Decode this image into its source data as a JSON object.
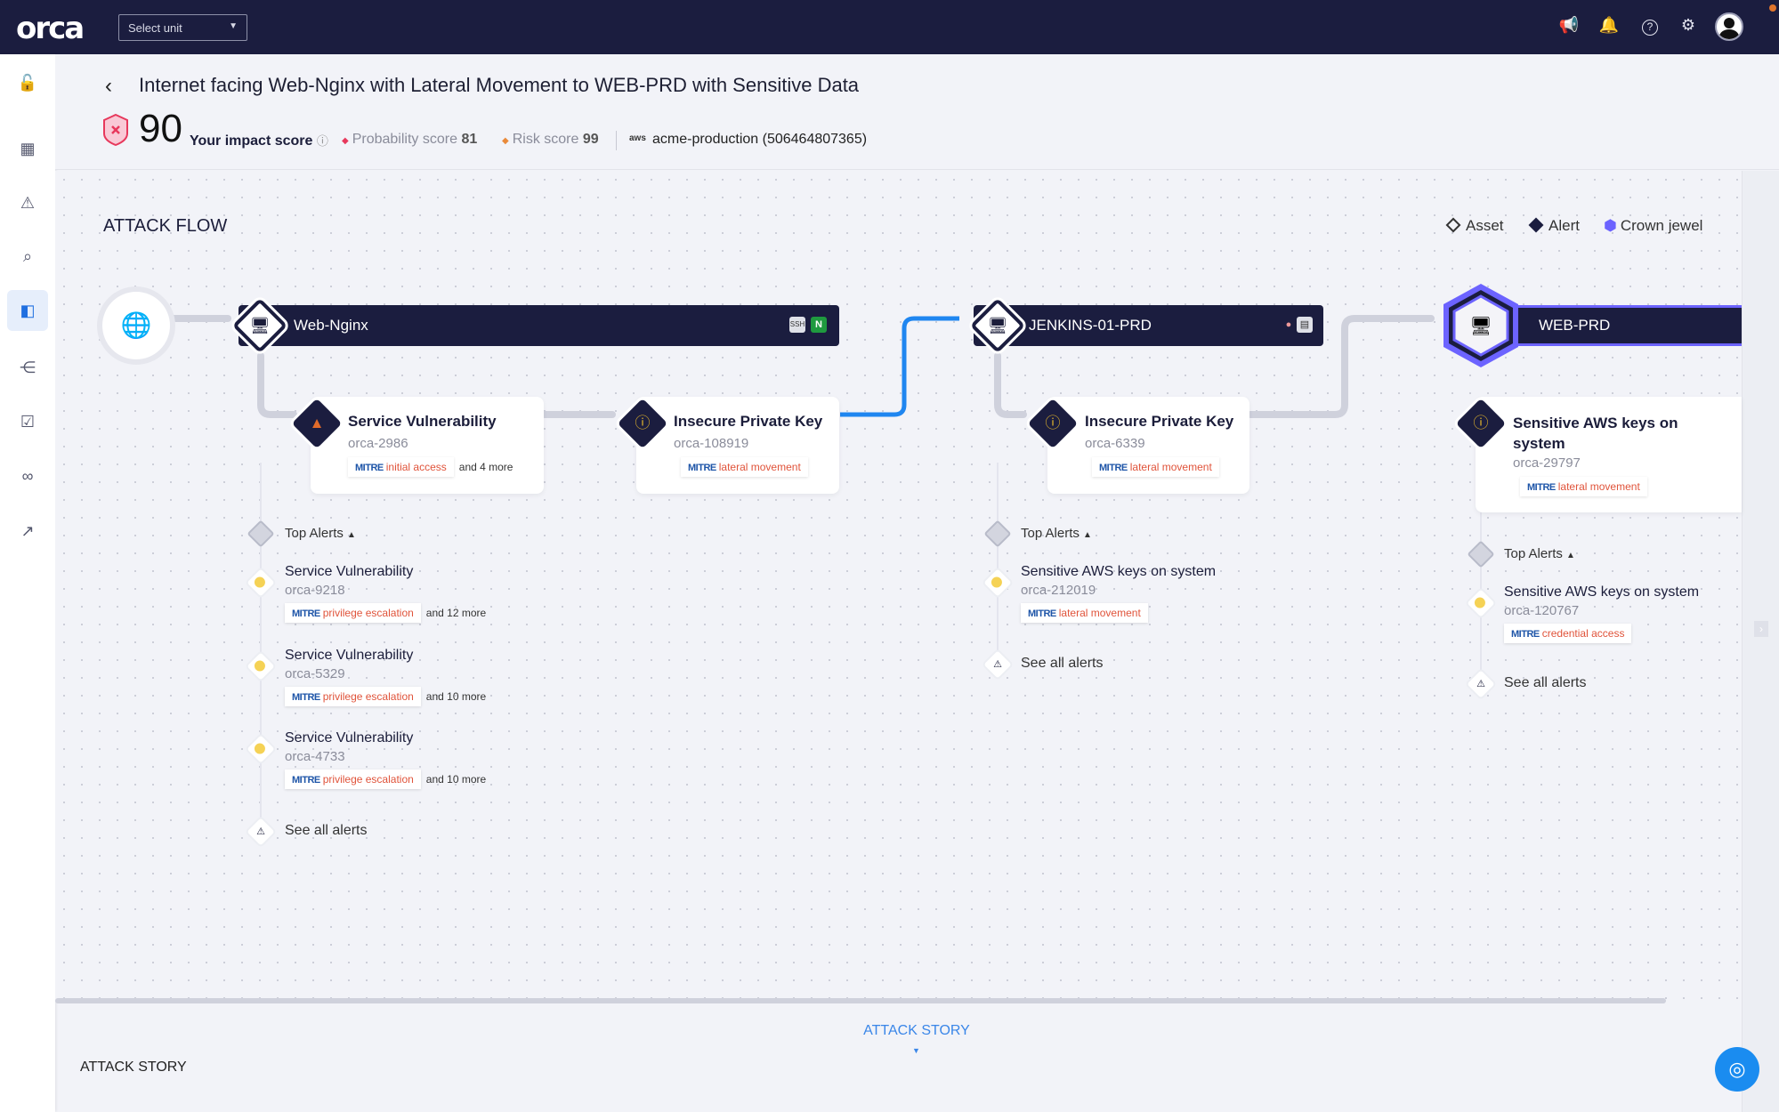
{
  "topbar": {
    "logo": "orca",
    "unit_select": "Select unit",
    "icons": [
      "megaphone-icon",
      "bell-icon",
      "help-icon",
      "gear-icon",
      "avatar"
    ]
  },
  "sidebar": {
    "items": [
      "lock-icon",
      "dashboard-icon",
      "alert-icon",
      "search-icon",
      "attack-path-icon",
      "graph-icon",
      "compliance-icon",
      "integrations-icon",
      "flow-icon"
    ],
    "active": "attack-path-icon"
  },
  "header": {
    "title": "Internet facing Web-Nginx with Lateral Movement to WEB-PRD with Sensitive Data",
    "impact_score": "90",
    "impact_label": "Your impact score",
    "probability_label": "Probability score",
    "probability": "81",
    "risk_label": "Risk score",
    "risk": "99",
    "cloud": "aws",
    "account": "acme-production (506464807365)"
  },
  "flow": {
    "title": "ATTACK FLOW",
    "legend": {
      "asset": "Asset",
      "alert": "Alert",
      "crown": "Crown jewel"
    },
    "assets": [
      {
        "name": "Web-Nginx",
        "badges": [
          "SSH",
          "N"
        ],
        "path_alerts": [
          {
            "title": "Service Vulnerability",
            "id": "orca-2986",
            "mitre": "initial access",
            "more": "and 4 more",
            "severity": "high"
          },
          {
            "title": "Insecure Private Key",
            "id": "orca-108919",
            "mitre": "lateral movement",
            "severity": "medium"
          }
        ],
        "top_alerts_label": "Top Alerts",
        "top_alerts": [
          {
            "title": "Service Vulnerability",
            "id": "orca-9218",
            "mitre": "privilege escalation",
            "more": "and 12 more"
          },
          {
            "title": "Service Vulnerability",
            "id": "orca-5329",
            "mitre": "privilege escalation",
            "more": "and 10 more"
          },
          {
            "title": "Service Vulnerability",
            "id": "orca-4733",
            "mitre": "privilege escalation",
            "more": "and 10 more"
          }
        ],
        "see_all": "See all alerts"
      },
      {
        "name": "JENKINS-01-PRD",
        "path_alerts": [
          {
            "title": "Insecure Private Key",
            "id": "orca-6339",
            "mitre": "lateral movement"
          }
        ],
        "top_alerts_label": "Top Alerts",
        "top_alerts": [
          {
            "title": "Sensitive AWS keys on system",
            "id": "orca-212019",
            "mitre": "lateral movement"
          }
        ],
        "see_all": "See all alerts"
      },
      {
        "name": "WEB-PRD",
        "crown_jewel": true,
        "path_alerts": [
          {
            "title": "Sensitive AWS keys on system",
            "id": "orca-29797",
            "mitre": "lateral movement"
          }
        ],
        "top_alerts_label": "Top Alerts",
        "top_alerts": [
          {
            "title": "Sensitive AWS keys on system",
            "id": "orca-120767",
            "mitre": "credential access"
          }
        ],
        "see_all": "See all alerts"
      }
    ]
  },
  "mitre_label": "MITRE",
  "story": {
    "tab": "ATTACK STORY",
    "title": "ATTACK STORY"
  },
  "colors": {
    "topbar": "#1b1d3f",
    "accent": "#1f6fe0",
    "crown": "#6c63ff",
    "mitre_tactic": "#e0533a"
  }
}
